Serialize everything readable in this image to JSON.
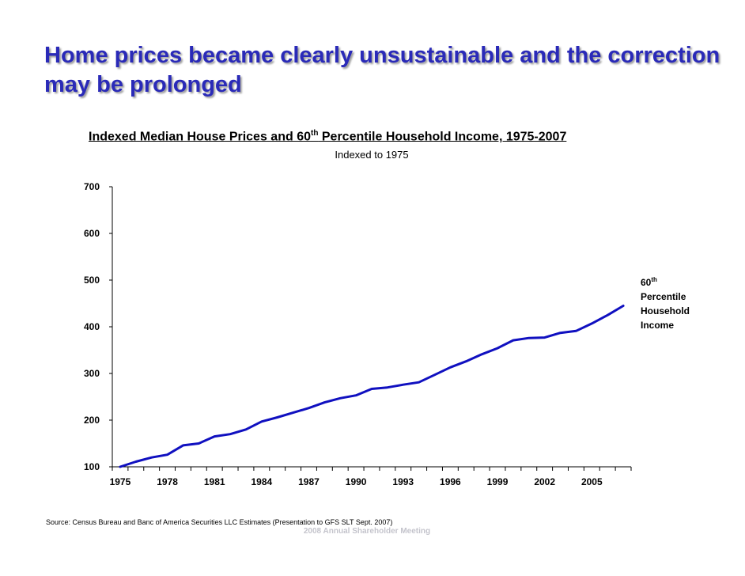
{
  "slide": {
    "title": "Home prices became clearly unsustainable and the correction may be prolonged",
    "source": "Source: Census Bureau and Banc of America Securities LLC Estimates (Presentation to GFS SLT Sept. 2007)",
    "footer": "2008 Annual Shareholder Meeting"
  },
  "chart_data": {
    "type": "line",
    "title_pre": "Indexed Median House Prices and 60",
    "title_sup": "th",
    "title_post": " Percentile Household Income, 1975-2007",
    "subtitle": "Indexed to 1975",
    "ylim": [
      100,
      700
    ],
    "yticks": [
      100,
      200,
      300,
      400,
      500,
      600,
      700
    ],
    "xticks": [
      1975,
      1978,
      1981,
      1984,
      1987,
      1990,
      1993,
      1996,
      1999,
      2002,
      2005
    ],
    "xrange": [
      1974.5,
      2007.5
    ],
    "grid": false,
    "series": [
      {
        "name": "60th Percentile Household Income",
        "label_lines": [
          "60",
          "Percentile",
          "Household",
          "Income"
        ],
        "label_sup": "th",
        "color": "#1010c0",
        "x": [
          1975,
          1976,
          1977,
          1978,
          1979,
          1980,
          1981,
          1982,
          1983,
          1984,
          1985,
          1986,
          1987,
          1988,
          1989,
          1990,
          1991,
          1992,
          1993,
          1994,
          1995,
          1996,
          1997,
          1998,
          1999,
          2000,
          2001,
          2002,
          2003,
          2004,
          2005,
          2006,
          2007
        ],
        "values": [
          100,
          111,
          120,
          126,
          146,
          150,
          165,
          170,
          180,
          197,
          206,
          216,
          226,
          238,
          247,
          253,
          267,
          270,
          276,
          281,
          297,
          313,
          326,
          341,
          354,
          371,
          376,
          377,
          387,
          391,
          407,
          425,
          445
        ]
      }
    ]
  }
}
